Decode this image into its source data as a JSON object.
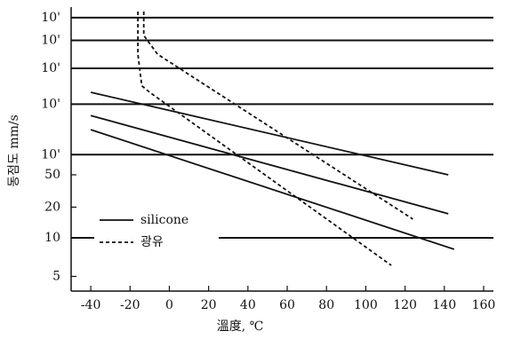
{
  "chart_data": {
    "type": "line",
    "yscale": "walther",
    "x_label": "溫度, ℃",
    "y_label": "동점도 mm/s",
    "xlim": [
      -50,
      165
    ],
    "xticks": [
      -40,
      -20,
      0,
      20,
      40,
      60,
      80,
      100,
      120,
      140,
      160
    ],
    "ylim": [
      4,
      2000000
    ],
    "yticks": [
      5,
      10,
      20,
      50,
      {
        "value": 100,
        "label": "10'"
      },
      {
        "value": 1000,
        "label": "10'"
      },
      {
        "value": 10000,
        "label": "10'"
      },
      {
        "value": 100000,
        "label": "10'"
      },
      {
        "value": 1000000,
        "label": "10'"
      }
    ],
    "grid": true,
    "legend": [
      {
        "name": "silicone",
        "dash": false
      },
      {
        "name": "광유",
        "dash": true
      }
    ],
    "series": [
      {
        "color": "#111",
        "dash": false,
        "x": [
          -40,
          142
        ],
        "values": [
          2000,
          50
        ]
      },
      {
        "color": "#111",
        "dash": false,
        "x": [
          -40,
          142
        ],
        "values": [
          550,
          17
        ]
      },
      {
        "color": "#111",
        "dash": false,
        "x": [
          -40,
          145
        ],
        "values": [
          280,
          8
        ]
      },
      {
        "color": "#111",
        "dash": true,
        "x": [
          -16,
          -16,
          -14,
          -10,
          113
        ],
        "values": [
          2000000,
          30000,
          3000,
          2000,
          6
        ]
      },
      {
        "color": "#111",
        "dash": true,
        "x": [
          -13,
          -13,
          -6,
          124
        ],
        "values": [
          2000000,
          160000,
          30000,
          15
        ]
      }
    ]
  }
}
